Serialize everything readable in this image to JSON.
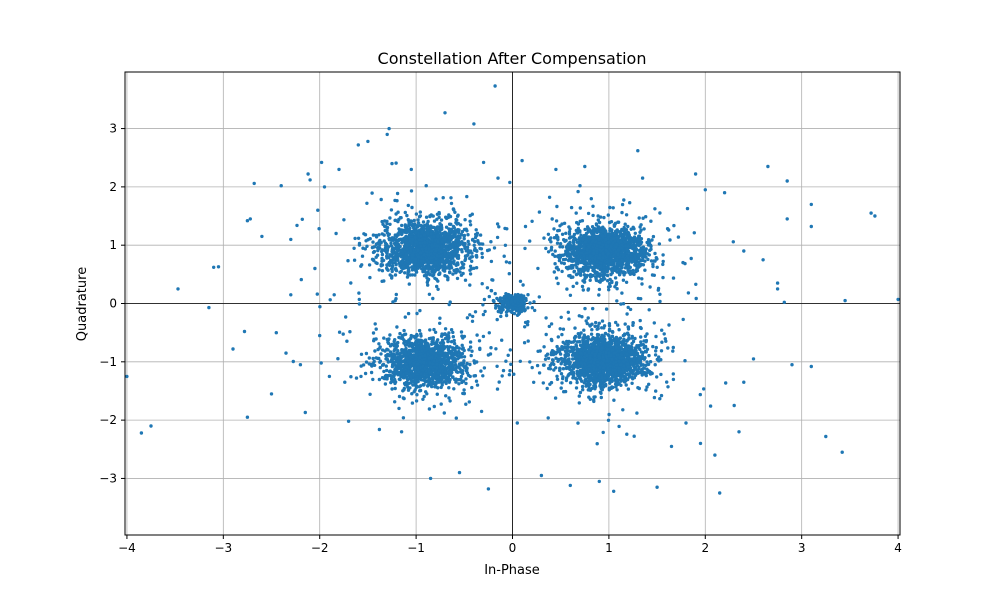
{
  "chart_data": {
    "type": "scatter",
    "title": "Constellation After Compensation",
    "xlabel": "In-Phase",
    "ylabel": "Quadrature",
    "xlim": [
      -4.02,
      4.02
    ],
    "ylim": [
      -3.97,
      3.97
    ],
    "xticks": [
      -4,
      -3,
      -2,
      -1,
      0,
      1,
      2,
      3,
      4
    ],
    "yticks": [
      -3,
      -2,
      -1,
      0,
      1,
      2,
      3
    ],
    "grid": true,
    "zero_lines": true,
    "marker_color": "#1f77b4",
    "clusters": [
      {
        "center": [
          -0.9,
          0.95
        ],
        "spread": 0.22,
        "count": 1700
      },
      {
        "center": [
          0.95,
          0.9
        ],
        "spread": 0.2,
        "count": 1700
      },
      {
        "center": [
          -0.9,
          -1.0
        ],
        "spread": 0.2,
        "count": 1500
      },
      {
        "center": [
          0.95,
          -0.95
        ],
        "spread": 0.22,
        "count": 1700
      },
      {
        "center": [
          0.0,
          0.0
        ],
        "spread": 0.07,
        "count": 300
      }
    ],
    "outliers": [
      [
        -4.0,
        -1.25
      ],
      [
        -3.85,
        -2.22
      ],
      [
        -3.75,
        -2.1
      ],
      [
        -3.47,
        0.25
      ],
      [
        -3.15,
        -0.07
      ],
      [
        -3.1,
        0.62
      ],
      [
        -3.05,
        0.63
      ],
      [
        -2.9,
        -0.78
      ],
      [
        -2.78,
        -0.48
      ],
      [
        -2.75,
        -1.95
      ],
      [
        -2.75,
        1.42
      ],
      [
        -2.72,
        1.45
      ],
      [
        -2.68,
        2.06
      ],
      [
        -2.6,
        1.15
      ],
      [
        -2.5,
        -1.55
      ],
      [
        -2.45,
        -0.5
      ],
      [
        -2.4,
        2.02
      ],
      [
        -2.35,
        -0.85
      ],
      [
        -2.3,
        0.15
      ],
      [
        -2.2,
        -1.05
      ],
      [
        -2.15,
        -1.87
      ],
      [
        -2.12,
        2.22
      ],
      [
        -2.1,
        2.12
      ],
      [
        -2.05,
        0.6
      ],
      [
        -2.02,
        1.6
      ],
      [
        -2.0,
        -0.55
      ],
      [
        -1.98,
        2.42
      ],
      [
        -1.95,
        2.0
      ],
      [
        -1.9,
        -1.25
      ],
      [
        -1.85,
        0.15
      ],
      [
        -1.6,
        2.72
      ],
      [
        -1.5,
        2.78
      ],
      [
        -1.3,
        2.9
      ],
      [
        -1.28,
        3.0
      ],
      [
        -1.25,
        2.4
      ],
      [
        -1.15,
        -2.2
      ],
      [
        -1.05,
        2.3
      ],
      [
        -0.85,
        -3.0
      ],
      [
        -0.7,
        3.27
      ],
      [
        -0.55,
        -2.9
      ],
      [
        -0.4,
        3.08
      ],
      [
        -0.3,
        2.42
      ],
      [
        -0.25,
        -3.18
      ],
      [
        -0.18,
        3.73
      ],
      [
        -0.15,
        2.15
      ],
      [
        0.1,
        2.45
      ],
      [
        0.05,
        -2.05
      ],
      [
        0.3,
        -2.95
      ],
      [
        0.45,
        2.3
      ],
      [
        0.6,
        -3.12
      ],
      [
        0.75,
        2.35
      ],
      [
        0.7,
        2.02
      ],
      [
        0.9,
        -3.05
      ],
      [
        1.05,
        -3.22
      ],
      [
        1.3,
        2.62
      ],
      [
        1.35,
        2.15
      ],
      [
        1.5,
        -3.15
      ],
      [
        1.65,
        -2.45
      ],
      [
        1.9,
        2.22
      ],
      [
        1.95,
        -2.4
      ],
      [
        2.0,
        1.95
      ],
      [
        2.1,
        -2.6
      ],
      [
        2.15,
        -3.25
      ],
      [
        2.2,
        1.9
      ],
      [
        2.3,
        -1.75
      ],
      [
        2.35,
        -2.2
      ],
      [
        2.4,
        0.9
      ],
      [
        2.5,
        -0.95
      ],
      [
        2.6,
        0.75
      ],
      [
        2.65,
        2.35
      ],
      [
        2.75,
        0.35
      ],
      [
        2.75,
        0.25
      ],
      [
        2.82,
        0.02
      ],
      [
        2.85,
        2.1
      ],
      [
        2.9,
        -1.05
      ],
      [
        3.1,
        1.7
      ],
      [
        3.1,
        1.32
      ],
      [
        3.1,
        -1.08
      ],
      [
        3.25,
        -2.28
      ],
      [
        3.42,
        -2.55
      ],
      [
        3.45,
        0.05
      ],
      [
        3.72,
        1.55
      ],
      [
        3.76,
        1.5
      ],
      [
        4.0,
        0.07
      ],
      [
        2.85,
        1.45
      ],
      [
        -1.8,
        2.3
      ],
      [
        -2.3,
        1.1
      ],
      [
        -1.7,
        -2.02
      ],
      [
        1.8,
        -2.05
      ],
      [
        2.4,
        -1.35
      ]
    ]
  }
}
